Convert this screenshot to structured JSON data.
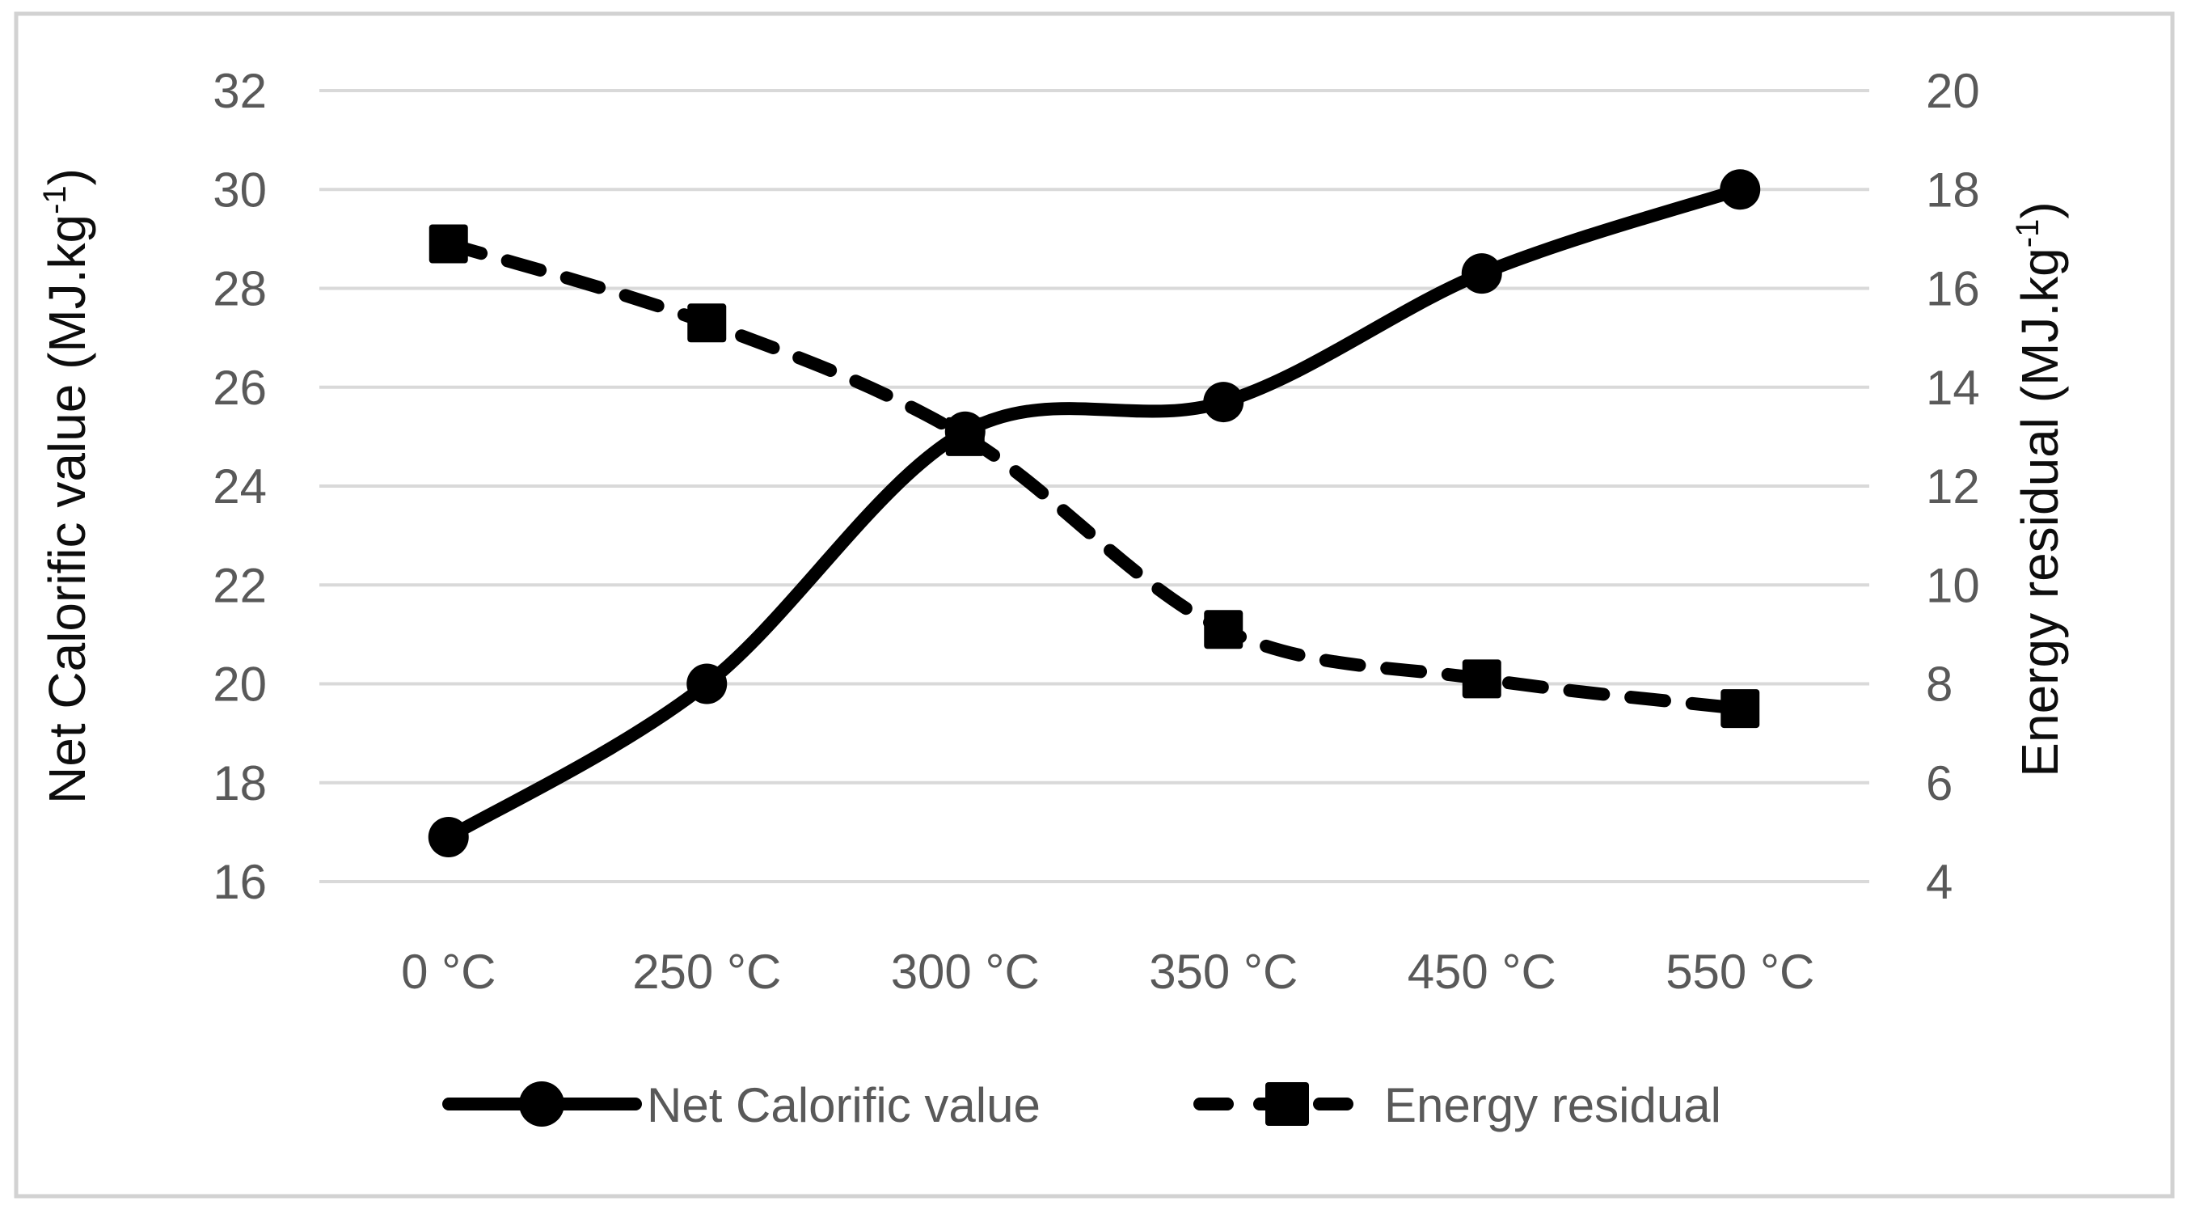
{
  "chart_data": {
    "type": "line",
    "categories": [
      "0 °C",
      "250 °C",
      "300 °C",
      "350 °C",
      "450 °C",
      "550 °C"
    ],
    "series": [
      {
        "name": "Net Calorific value",
        "axis": "left",
        "line_style": "solid",
        "marker": "circle",
        "color": "#000000",
        "values": [
          16.9,
          20.0,
          25.1,
          25.7,
          28.3,
          30.0
        ]
      },
      {
        "name": "Energy residual",
        "axis": "right",
        "line_style": "dashed",
        "marker": "square",
        "color": "#000000",
        "values": [
          16.9,
          15.3,
          13.0,
          9.1,
          8.1,
          7.5
        ]
      }
    ],
    "left_axis": {
      "title_prefix": "Net Calorific value (MJ.kg",
      "title_sup": "-1",
      "title_suffix": ")",
      "min": 16,
      "max": 32,
      "step": 2,
      "tick_labels": [
        "32",
        "30",
        "28",
        "26",
        "24",
        "22",
        "20",
        "18",
        "16"
      ]
    },
    "right_axis": {
      "title_prefix": "Energy residual (MJ.kg",
      "title_sup": "-1",
      "title_suffix": ")",
      "min": 4,
      "max": 20,
      "step": 2,
      "tick_labels": [
        "20",
        "18",
        "16",
        "14",
        "12",
        "10",
        "8",
        "6",
        "4"
      ]
    },
    "legend": {
      "position": "bottom",
      "entries": [
        "Net Calorific value",
        "Energy residual"
      ]
    },
    "grid": "horizontal",
    "colors": {
      "series": "#000000",
      "tick_text": "#595959",
      "legend_text": "#595959",
      "axis_title_text": "#0d0d0d",
      "gridline": "#d9d9d9",
      "border": "#d2d2d2",
      "background": "#ffffff"
    }
  }
}
